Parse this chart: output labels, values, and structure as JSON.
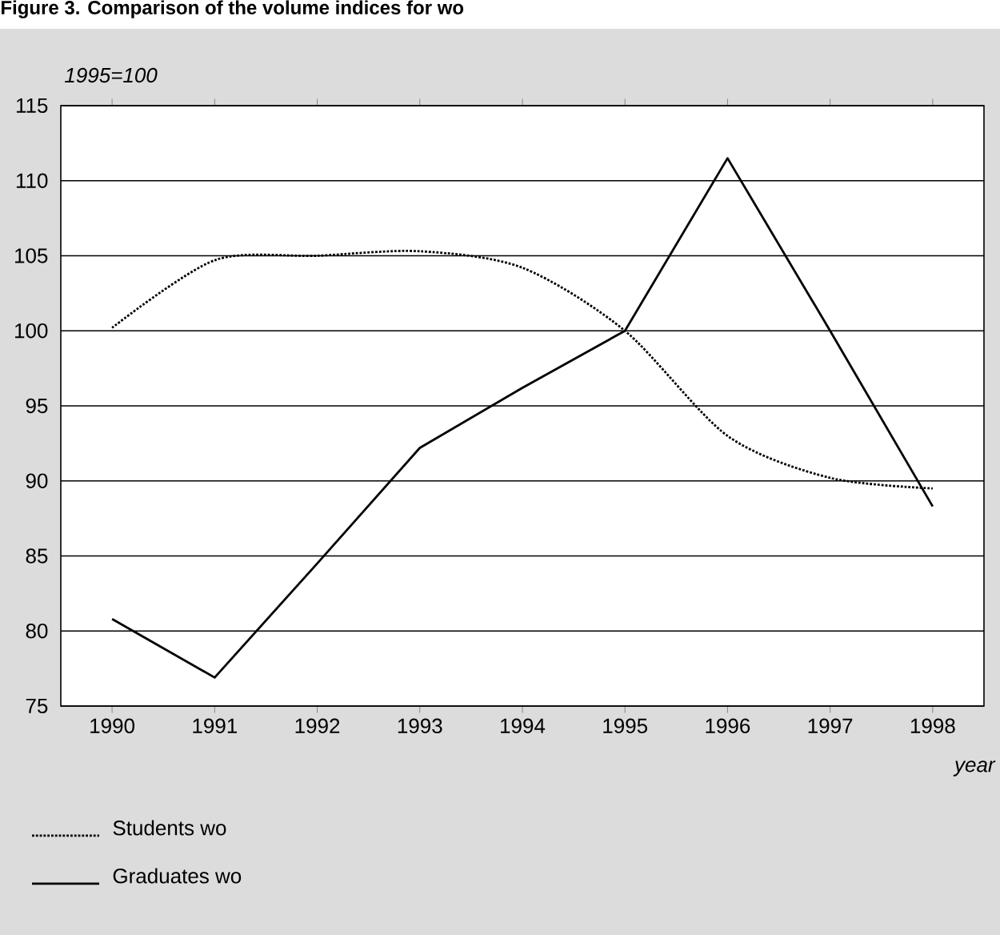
{
  "chart_data": {
    "type": "line",
    "title": "Figure 3.  Comparison of the volume indices for wo",
    "ylabel": "1995=100",
    "xlabel": "year",
    "categories": [
      "1990",
      "1991",
      "1992",
      "1993",
      "1994",
      "1995",
      "1996",
      "1997",
      "1998"
    ],
    "series": [
      {
        "name": "Students wo",
        "color": "#000000",
        "line_style": "dotted",
        "values": [
          100.2,
          104.7,
          105.0,
          105.3,
          104.2,
          100.0,
          93.0,
          90.2,
          89.5
        ]
      },
      {
        "name": "Graduates wo",
        "color": "#000000",
        "line_style": "solid",
        "values": [
          80.8,
          76.9,
          84.5,
          92.2,
          96.2,
          100.0,
          111.5,
          100.0,
          88.3
        ]
      }
    ],
    "ylim": [
      75,
      115
    ],
    "yticks": [
      75,
      80,
      85,
      90,
      95,
      100,
      105,
      110,
      115
    ],
    "grid": "y",
    "legend": "bottom left"
  }
}
